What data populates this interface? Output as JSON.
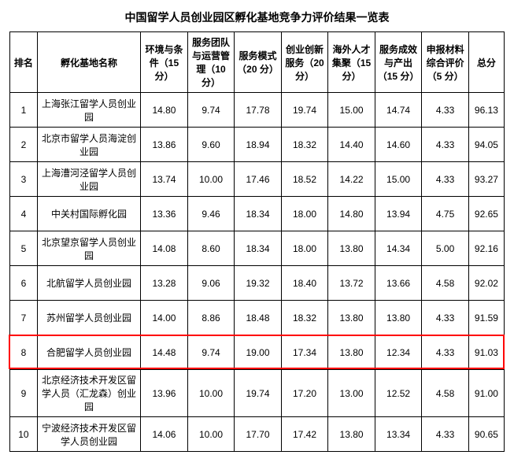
{
  "title": "中国留学人员创业园区孵化基地竞争力评价结果一览表",
  "headers": {
    "rank": "排名",
    "name": "孵化基地名称",
    "m1": "环境与条件（15 分）",
    "m2": "服务团队与运营管理（10分）",
    "m3": "服务模式（20 分）",
    "m4": "创业创新服务（20 分）",
    "m5": "海外人才集聚（15 分）",
    "m6": "服务成效与产出（15 分）",
    "m7": "申报材料综合评价（5 分）",
    "total": "总分"
  },
  "rows": [
    {
      "rank": "1",
      "name": "上海张江留学人员创业园",
      "m1": "14.80",
      "m2": "9.74",
      "m3": "17.78",
      "m4": "19.74",
      "m5": "15.00",
      "m6": "14.74",
      "m7": "4.33",
      "total": "96.13",
      "highlight": false
    },
    {
      "rank": "2",
      "name": "北京市留学人员海淀创业园",
      "m1": "13.86",
      "m2": "9.60",
      "m3": "18.94",
      "m4": "18.32",
      "m5": "14.40",
      "m6": "14.60",
      "m7": "4.33",
      "total": "94.05",
      "highlight": false
    },
    {
      "rank": "3",
      "name": "上海漕河泾留学人员创业园",
      "m1": "13.74",
      "m2": "10.00",
      "m3": "17.46",
      "m4": "18.52",
      "m5": "14.22",
      "m6": "15.00",
      "m7": "4.33",
      "total": "93.27",
      "highlight": false
    },
    {
      "rank": "4",
      "name": "中关村国际孵化园",
      "m1": "13.36",
      "m2": "9.46",
      "m3": "18.34",
      "m4": "18.00",
      "m5": "14.80",
      "m6": "13.94",
      "m7": "4.75",
      "total": "92.65",
      "highlight": false
    },
    {
      "rank": "5",
      "name": "北京望京留学人员创业园",
      "m1": "14.08",
      "m2": "8.60",
      "m3": "18.34",
      "m4": "18.00",
      "m5": "13.80",
      "m6": "14.34",
      "m7": "5.00",
      "total": "92.16",
      "highlight": false
    },
    {
      "rank": "6",
      "name": "北航留学人员创业园",
      "m1": "13.28",
      "m2": "9.06",
      "m3": "19.32",
      "m4": "18.40",
      "m5": "13.72",
      "m6": "13.66",
      "m7": "4.58",
      "total": "92.02",
      "highlight": false
    },
    {
      "rank": "7",
      "name": "苏州留学人员创业园",
      "m1": "14.00",
      "m2": "8.86",
      "m3": "18.48",
      "m4": "18.32",
      "m5": "13.80",
      "m6": "13.80",
      "m7": "4.33",
      "total": "91.59",
      "highlight": false
    },
    {
      "rank": "8",
      "name": "合肥留学人员创业园",
      "m1": "14.48",
      "m2": "9.74",
      "m3": "19.00",
      "m4": "17.34",
      "m5": "13.80",
      "m6": "12.34",
      "m7": "4.33",
      "total": "91.03",
      "highlight": true
    },
    {
      "rank": "9",
      "name": "北京经济技术开发区留学人员（汇龙森）创业园",
      "m1": "13.96",
      "m2": "10.00",
      "m3": "19.74",
      "m4": "17.20",
      "m5": "13.00",
      "m6": "12.52",
      "m7": "4.58",
      "total": "91.00",
      "highlight": false
    },
    {
      "rank": "10",
      "name": "宁波经济技术开发区留学人员创业园",
      "m1": "14.06",
      "m2": "10.00",
      "m3": "17.70",
      "m4": "17.42",
      "m5": "13.80",
      "m6": "13.34",
      "m7": "4.33",
      "total": "90.65",
      "highlight": false
    }
  ],
  "highlight_color": "#ff0000",
  "background_color": "#ffffff",
  "border_color": "#000000",
  "font_color": "#000000"
}
